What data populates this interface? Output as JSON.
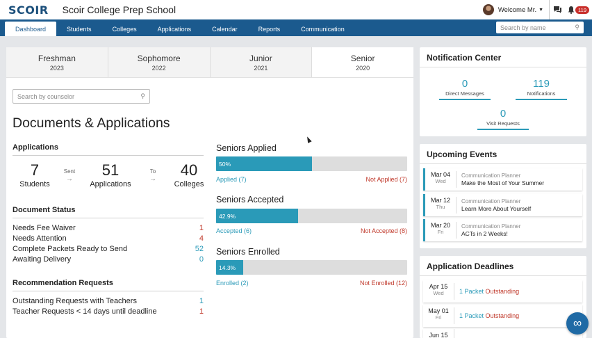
{
  "header": {
    "logo": "SCOIR",
    "school_name": "Scoir College Prep School",
    "welcome": "Welcome Mr.",
    "notification_count": "119"
  },
  "nav": {
    "tabs": [
      {
        "label": "Dashboard",
        "active": true
      },
      {
        "label": "Students"
      },
      {
        "label": "Colleges"
      },
      {
        "label": "Applications"
      },
      {
        "label": "Calendar"
      },
      {
        "label": "Reports"
      },
      {
        "label": "Communication"
      }
    ],
    "search_placeholder": "Search by name"
  },
  "grades": [
    {
      "name": "Freshman",
      "year": "2023"
    },
    {
      "name": "Sophomore",
      "year": "2022"
    },
    {
      "name": "Junior",
      "year": "2021"
    },
    {
      "name": "Senior",
      "year": "2020",
      "active": true
    }
  ],
  "counselor_search_placeholder": "Search by counselor",
  "page_title": "Documents & Applications",
  "applications": {
    "title": "Applications",
    "students_count": "7",
    "students_label": "Students",
    "sent_label": "Sent",
    "applications_count": "51",
    "applications_label": "Applications",
    "to_label": "To",
    "colleges_count": "40",
    "colleges_label": "Colleges"
  },
  "document_status": {
    "title": "Document Status",
    "rows": [
      {
        "label": "Needs Fee Waiver",
        "value": "1"
      },
      {
        "label": "Needs Attention",
        "value": "4"
      },
      {
        "label": "Complete Packets Ready to Send",
        "value": "52"
      },
      {
        "label": "Awaiting Delivery",
        "value": "0"
      }
    ]
  },
  "recommendation_requests": {
    "title": "Recommendation Requests",
    "rows": [
      {
        "label": "Outstanding Requests with Teachers",
        "value": "1"
      },
      {
        "label": "Teacher Requests < 14 days until deadline",
        "value": "1"
      }
    ]
  },
  "progress": [
    {
      "title": "Seniors Applied",
      "percent_label": "50%",
      "fraction": 0.5,
      "left_label": "Applied (7)",
      "right_label": "Not Applied (7)"
    },
    {
      "title": "Seniors Accepted",
      "percent_label": "42.9%",
      "fraction": 0.429,
      "left_label": "Accepted (6)",
      "right_label": "Not Accepted (8)"
    },
    {
      "title": "Seniors Enrolled",
      "percent_label": "14.3%",
      "fraction": 0.143,
      "left_label": "Enrolled (2)",
      "right_label": "Not Enrolled (12)"
    }
  ],
  "notification_center": {
    "title": "Notification Center",
    "direct_messages_count": "0",
    "direct_messages_label": "Direct Messages",
    "notifications_count": "119",
    "notifications_label": "Notifications",
    "visit_requests_count": "0",
    "visit_requests_label": "Visit Requests"
  },
  "upcoming_events": {
    "title": "Upcoming Events",
    "items": [
      {
        "date": "Mar 04",
        "day": "Wed",
        "category": "Communication Planner",
        "name": "Make the Most of Your Summer"
      },
      {
        "date": "Mar 12",
        "day": "Thu",
        "category": "Communication Planner",
        "name": "Learn More About Yourself"
      },
      {
        "date": "Mar 20",
        "day": "Fri",
        "category": "Communication Planner",
        "name": "ACTs in 2 Weeks!"
      }
    ]
  },
  "application_deadlines": {
    "title": "Application Deadlines",
    "items": [
      {
        "date": "Apr 15",
        "day": "Wed",
        "packets": "1 Packet",
        "status": "Outstanding"
      },
      {
        "date": "May 01",
        "day": "Fri",
        "packets": "1 Packet",
        "status": "Outstanding"
      },
      {
        "date": "Jun 15",
        "day": "",
        "packets": "",
        "status": ""
      }
    ]
  },
  "colors": {
    "brand_nav": "#1b5a8e",
    "accent": "#2a9ab8",
    "alert": "#c0392b"
  }
}
